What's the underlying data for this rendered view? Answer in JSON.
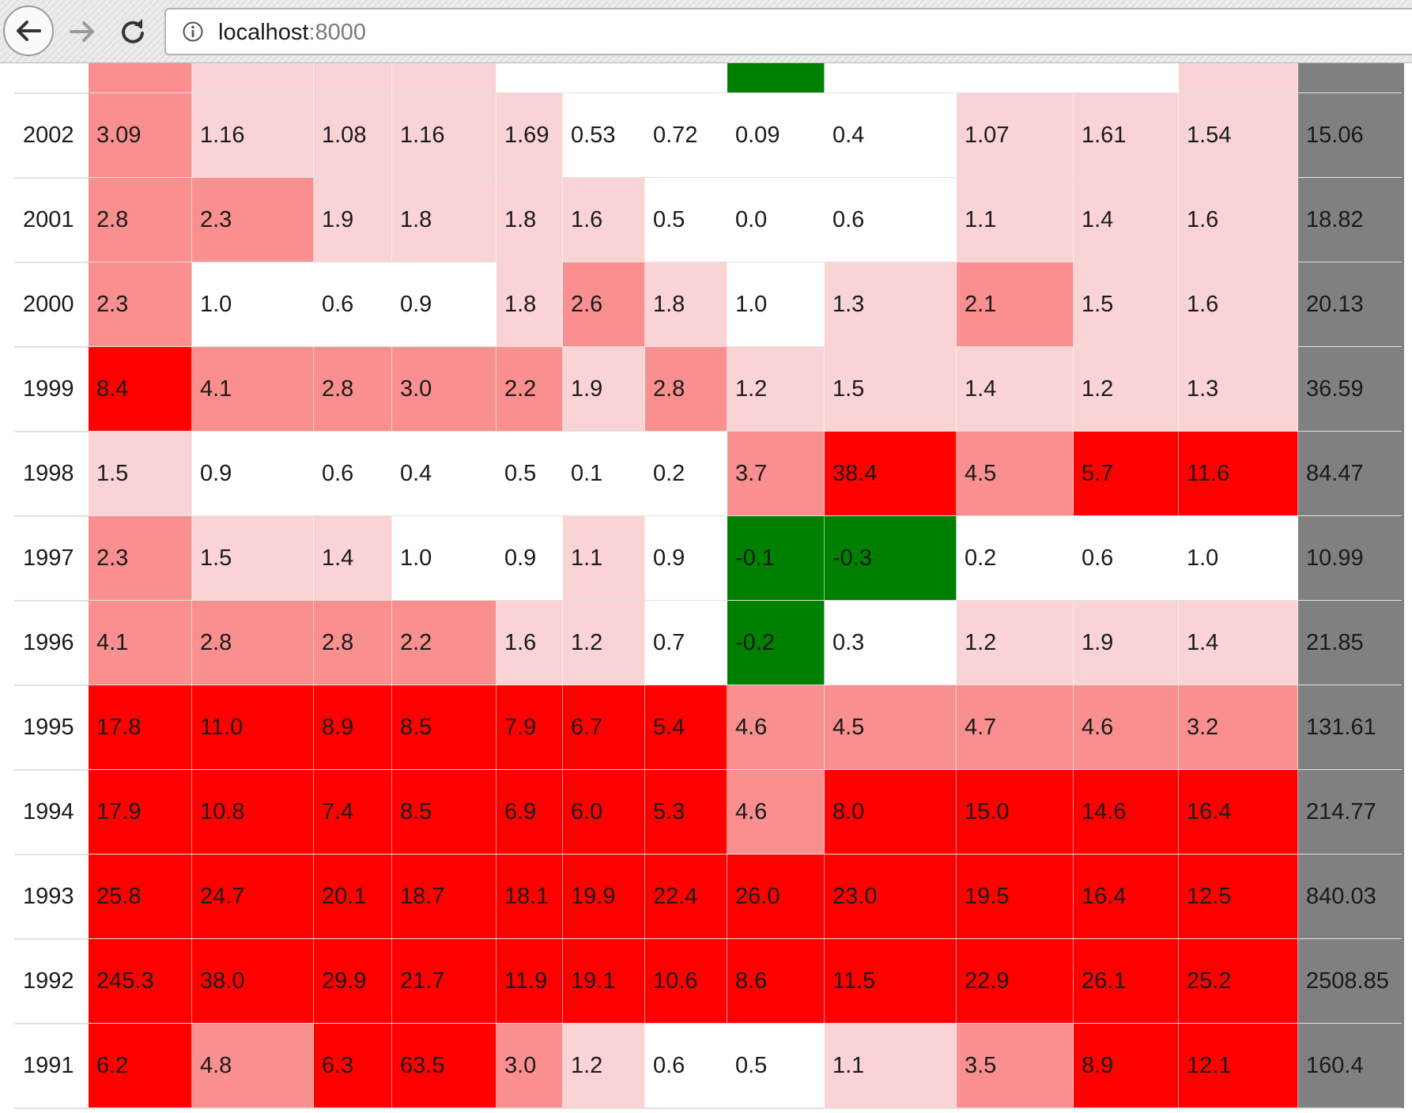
{
  "browser": {
    "address_host": "localhost",
    "address_port": ":8000",
    "icons": {
      "back": "arrow-left-icon",
      "forward": "arrow-right-icon",
      "reload": "reload-icon",
      "info": "info-circle-icon"
    }
  },
  "heatmap": {
    "colors": {
      "none": "#ffffff",
      "light": "#fad4d4",
      "med": "#f98f8f",
      "high": "#ff0000",
      "negative": "#008000",
      "total": "#808080"
    },
    "partial_top_row_levels": [
      "med",
      "light",
      "light",
      "light",
      "none",
      "none",
      "none",
      "neg",
      "none",
      "none",
      "none",
      "light",
      "total"
    ],
    "rows": [
      {
        "year": "2002",
        "values": [
          "3.09",
          "1.16",
          "1.08",
          "1.16",
          "1.69",
          "0.53",
          "0.72",
          "0.09",
          "0.4",
          "1.07",
          "1.61",
          "1.54"
        ],
        "levels": [
          "med",
          "light",
          "light",
          "light",
          "light",
          "none",
          "none",
          "none",
          "none",
          "light",
          "light",
          "light"
        ],
        "total": "15.06"
      },
      {
        "year": "2001",
        "values": [
          "2.8",
          "2.3",
          "1.9",
          "1.8",
          "1.8",
          "1.6",
          "0.5",
          "0.0",
          "0.6",
          "1.1",
          "1.4",
          "1.6"
        ],
        "levels": [
          "med",
          "med",
          "light",
          "light",
          "light",
          "light",
          "none",
          "none",
          "none",
          "light",
          "light",
          "light"
        ],
        "total": "18.82"
      },
      {
        "year": "2000",
        "values": [
          "2.3",
          "1.0",
          "0.6",
          "0.9",
          "1.8",
          "2.6",
          "1.8",
          "1.0",
          "1.3",
          "2.1",
          "1.5",
          "1.6"
        ],
        "levels": [
          "med",
          "none",
          "none",
          "none",
          "light",
          "med",
          "light",
          "none",
          "light",
          "med",
          "light",
          "light"
        ],
        "total": "20.13"
      },
      {
        "year": "1999",
        "values": [
          "8.4",
          "4.1",
          "2.8",
          "3.0",
          "2.2",
          "1.9",
          "2.8",
          "1.2",
          "1.5",
          "1.4",
          "1.2",
          "1.3"
        ],
        "levels": [
          "high",
          "med",
          "med",
          "med",
          "med",
          "light",
          "med",
          "light",
          "light",
          "light",
          "light",
          "light"
        ],
        "total": "36.59"
      },
      {
        "year": "1998",
        "values": [
          "1.5",
          "0.9",
          "0.6",
          "0.4",
          "0.5",
          "0.1",
          "0.2",
          "3.7",
          "38.4",
          "4.5",
          "5.7",
          "11.6"
        ],
        "levels": [
          "light",
          "none",
          "none",
          "none",
          "none",
          "none",
          "none",
          "med",
          "high",
          "med",
          "high",
          "high"
        ],
        "total": "84.47"
      },
      {
        "year": "1997",
        "values": [
          "2.3",
          "1.5",
          "1.4",
          "1.0",
          "0.9",
          "1.1",
          "0.9",
          "-0.1",
          "-0.3",
          "0.2",
          "0.6",
          "1.0"
        ],
        "levels": [
          "med",
          "light",
          "light",
          "none",
          "none",
          "light",
          "none",
          "neg",
          "neg",
          "none",
          "none",
          "none"
        ],
        "total": "10.99"
      },
      {
        "year": "1996",
        "values": [
          "4.1",
          "2.8",
          "2.8",
          "2.2",
          "1.6",
          "1.2",
          "0.7",
          "-0.2",
          "0.3",
          "1.2",
          "1.9",
          "1.4"
        ],
        "levels": [
          "med",
          "med",
          "med",
          "med",
          "light",
          "light",
          "none",
          "neg",
          "none",
          "light",
          "light",
          "light"
        ],
        "total": "21.85"
      },
      {
        "year": "1995",
        "values": [
          "17.8",
          "11.0",
          "8.9",
          "8.5",
          "7.9",
          "6.7",
          "5.4",
          "4.6",
          "4.5",
          "4.7",
          "4.6",
          "3.2"
        ],
        "levels": [
          "high",
          "high",
          "high",
          "high",
          "high",
          "high",
          "high",
          "med",
          "med",
          "med",
          "med",
          "med"
        ],
        "total": "131.61"
      },
      {
        "year": "1994",
        "values": [
          "17.9",
          "10.8",
          "7.4",
          "8.5",
          "6.9",
          "6.0",
          "5.3",
          "4.6",
          "8.0",
          "15.0",
          "14.6",
          "16.4"
        ],
        "levels": [
          "high",
          "high",
          "high",
          "high",
          "high",
          "high",
          "high",
          "med",
          "high",
          "high",
          "high",
          "high"
        ],
        "total": "214.77"
      },
      {
        "year": "1993",
        "values": [
          "25.8",
          "24.7",
          "20.1",
          "18.7",
          "18.1",
          "19.9",
          "22.4",
          "26.0",
          "23.0",
          "19.5",
          "16.4",
          "12.5"
        ],
        "levels": [
          "high",
          "high",
          "high",
          "high",
          "high",
          "high",
          "high",
          "high",
          "high",
          "high",
          "high",
          "high"
        ],
        "total": "840.03"
      },
      {
        "year": "1992",
        "values": [
          "245.3",
          "38.0",
          "29.9",
          "21.7",
          "11.9",
          "19.1",
          "10.6",
          "8.6",
          "11.5",
          "22.9",
          "26.1",
          "25.2"
        ],
        "levels": [
          "high",
          "high",
          "high",
          "high",
          "high",
          "high",
          "high",
          "high",
          "high",
          "high",
          "high",
          "high"
        ],
        "total": "2508.85"
      },
      {
        "year": "1991",
        "values": [
          "6.2",
          "4.8",
          "6.3",
          "63.5",
          "3.0",
          "1.2",
          "0.6",
          "0.5",
          "1.1",
          "3.5",
          "8.9",
          "12.1"
        ],
        "levels": [
          "high",
          "med",
          "high",
          "high",
          "med",
          "light",
          "none",
          "none",
          "light",
          "med",
          "high",
          "high"
        ],
        "total": "160.4"
      }
    ]
  }
}
